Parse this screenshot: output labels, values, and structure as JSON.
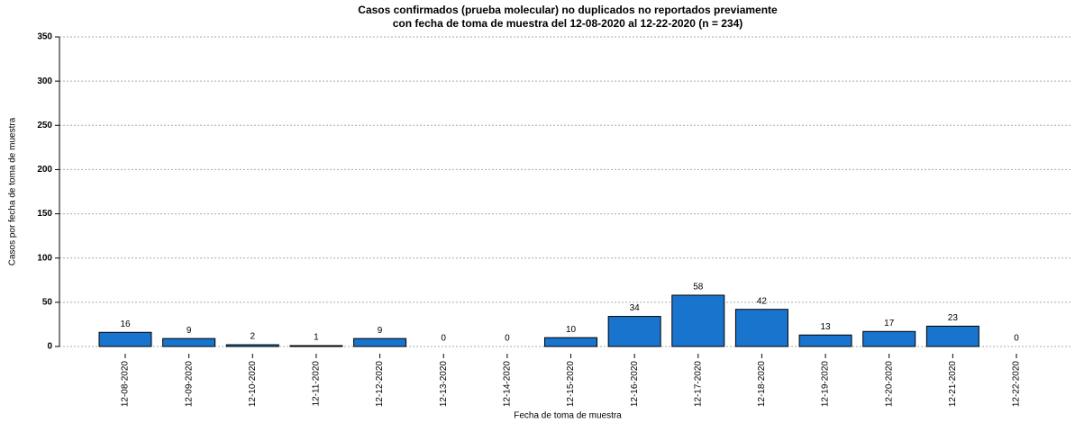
{
  "chart_data": {
    "type": "bar",
    "title": [
      "Casos confirmados (prueba molecular) no duplicados no reportados previamente",
      "con fecha de toma de muestra del 12-08-2020 al 12-22-2020 (n = 234)"
    ],
    "x_label": "Fecha de toma de muestra",
    "y_label": "Casos por fecha de toma de muestra",
    "categories": [
      "12-08-2020",
      "12-09-2020",
      "12-10-2020",
      "12-11-2020",
      "12-12-2020",
      "12-13-2020",
      "12-14-2020",
      "12-15-2020",
      "12-16-2020",
      "12-17-2020",
      "12-18-2020",
      "12-19-2020",
      "12-20-2020",
      "12-21-2020",
      "12-22-2020"
    ],
    "values": [
      16,
      9,
      2,
      1,
      9,
      0,
      0,
      10,
      34,
      58,
      42,
      13,
      17,
      23,
      0
    ],
    "color": "#1874cd",
    "ylim": [
      0,
      350
    ],
    "yticks": [
      0,
      50,
      100,
      150,
      200,
      250,
      300,
      350
    ],
    "grid": true
  }
}
